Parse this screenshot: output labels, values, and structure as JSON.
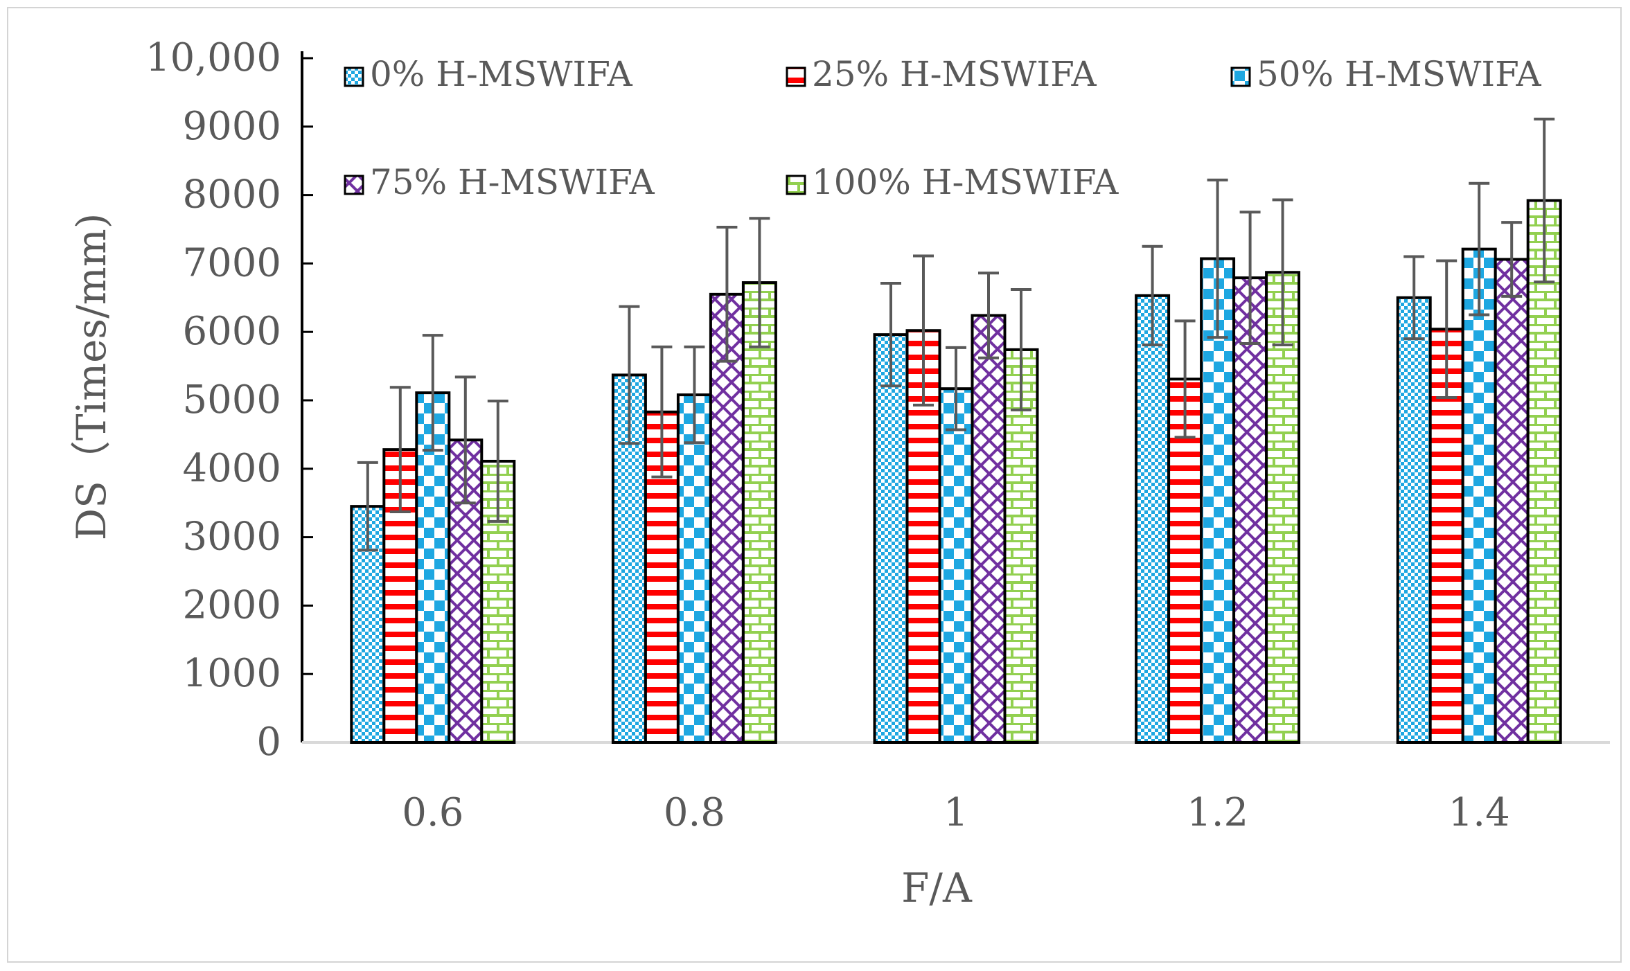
{
  "chart_data": {
    "type": "bar",
    "title": "",
    "xlabel": "F/A",
    "ylabel": "DS（Times/mm)",
    "categories": [
      "0.6",
      "0.8",
      "1",
      "1.2",
      "1.4"
    ],
    "ylim": [
      0,
      10000
    ],
    "yticks": [
      "0",
      "1000",
      "2000",
      "3000",
      "4000",
      "5000",
      "6000",
      "7000",
      "8000",
      "9000",
      "10,000"
    ],
    "grid": false,
    "legend_position": "top-left inside plot",
    "series": [
      {
        "name": "0% H-MSWIFA",
        "values": [
          3450,
          5370,
          5960,
          6530,
          6500
        ],
        "errors": [
          640,
          1000,
          750,
          720,
          600
        ],
        "color": "#1ea7e1",
        "pattern": "fine-dots"
      },
      {
        "name": "25% H-MSWIFA",
        "values": [
          4280,
          4830,
          6020,
          5310,
          6040
        ],
        "errors": [
          910,
          950,
          1090,
          850,
          1000
        ],
        "color": "#ff0000",
        "pattern": "horizontal-stripes"
      },
      {
        "name": "50% H-MSWIFA",
        "values": [
          5110,
          5080,
          5170,
          7070,
          7210
        ],
        "errors": [
          840,
          700,
          600,
          1150,
          960
        ],
        "color": "#1ea7e1",
        "pattern": "checker"
      },
      {
        "name": "75% H-MSWIFA",
        "values": [
          4420,
          6550,
          6240,
          6790,
          7060
        ],
        "errors": [
          920,
          980,
          620,
          960,
          540
        ],
        "color": "#7030a0",
        "pattern": "lattice"
      },
      {
        "name": "100% H-MSWIFA",
        "values": [
          4110,
          6720,
          5740,
          6870,
          7920
        ],
        "errors": [
          880,
          940,
          880,
          1060,
          1190
        ],
        "color": "#92d050",
        "pattern": "bricks"
      }
    ]
  }
}
